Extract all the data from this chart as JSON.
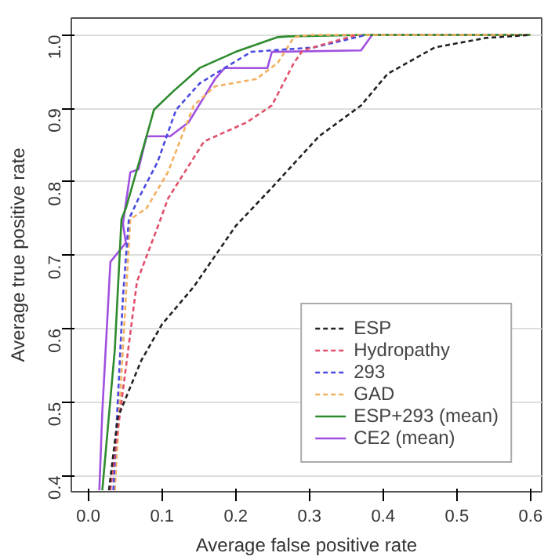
{
  "chart_data": {
    "type": "line",
    "xlabel": "Average false positive rate",
    "ylabel": "Average true positive rate",
    "xlim": [
      -0.023,
      0.615
    ],
    "ylim": [
      0.378,
      1.023
    ],
    "xticks": [
      {
        "value": 0,
        "label": "0.0"
      },
      0.1,
      0.2,
      0.3,
      0.4,
      0.5,
      0.6
    ],
    "yticks": [
      0.4,
      0.5,
      0.6,
      0.7,
      0.8,
      0.9,
      {
        "value": 1,
        "label": "1.0"
      }
    ],
    "grid": "y",
    "legend": "bottom right",
    "series": [
      {
        "name": "ESP",
        "color": "#222222",
        "line_style": "dashed",
        "x": [
          0.028,
          0.04,
          0.072,
          0.1,
          0.143,
          0.2,
          0.249,
          0.313,
          0.37,
          0.406,
          0.47,
          0.54,
          0.6
        ],
        "values": [
          0.38,
          0.479,
          0.557,
          0.606,
          0.657,
          0.74,
          0.792,
          0.862,
          0.904,
          0.947,
          0.983,
          0.996,
          1.0
        ]
      },
      {
        "name": "Hydropathy",
        "color": "#e0506a",
        "line_style": "dashed",
        "x": [
          0.03,
          0.036,
          0.066,
          0.098,
          0.108,
          0.157,
          0.215,
          0.249,
          0.279,
          0.291,
          0.364
        ],
        "values": [
          0.38,
          0.43,
          0.664,
          0.749,
          0.777,
          0.855,
          0.881,
          0.904,
          0.962,
          0.979,
          1.0
        ]
      },
      {
        "name": "293",
        "color": "#4a4ae0",
        "line_style": "dashed",
        "x": [
          0.034,
          0.047,
          0.055,
          0.068,
          0.094,
          0.119,
          0.151,
          0.185,
          0.221,
          0.306,
          0.377
        ],
        "values": [
          0.38,
          0.643,
          0.749,
          0.777,
          0.827,
          0.898,
          0.934,
          0.955,
          0.977,
          0.983,
          1.0
        ]
      },
      {
        "name": "GAD",
        "color": "#f2b060",
        "line_style": "dashed",
        "x": [
          0.036,
          0.057,
          0.079,
          0.108,
          0.143,
          0.172,
          0.228,
          0.257,
          0.279,
          0.3,
          0.6
        ],
        "values": [
          0.38,
          0.749,
          0.764,
          0.813,
          0.904,
          0.93,
          0.94,
          0.962,
          0.997,
          1.0,
          1.0
        ]
      },
      {
        "name": "ESP+293 (mean)",
        "color": "#2e8b2e",
        "line_style": "solid",
        "x": [
          0.019,
          0.036,
          0.045,
          0.051,
          0.079,
          0.089,
          0.115,
          0.151,
          0.2,
          0.257,
          0.27,
          0.377,
          0.6
        ],
        "values": [
          0.38,
          0.572,
          0.749,
          0.764,
          0.862,
          0.898,
          0.923,
          0.955,
          0.977,
          0.997,
          0.998,
          1.0,
          1.0
        ]
      },
      {
        "name": "CE2 (mean)",
        "color": "#a050e0",
        "line_style": "solid",
        "x": [
          0.015,
          0.019,
          0.03,
          0.051,
          0.047,
          0.057,
          0.068,
          0.079,
          0.111,
          0.136,
          0.172,
          0.185,
          0.243,
          0.249,
          0.37,
          0.385,
          0.6
        ],
        "values": [
          0.38,
          0.487,
          0.691,
          0.717,
          0.743,
          0.813,
          0.817,
          0.862,
          0.862,
          0.881,
          0.94,
          0.955,
          0.955,
          0.977,
          0.979,
          1.0,
          1.0
        ]
      }
    ]
  }
}
